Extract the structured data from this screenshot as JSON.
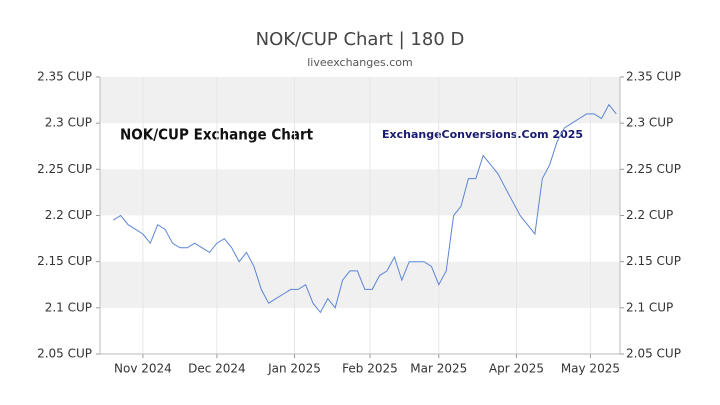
{
  "chart_data": {
    "type": "line",
    "title": "NOK/CUP Chart | 180 D",
    "subtitle": "liveexchanges.com",
    "annotations": [
      "NOK/CUP Exchange Chart",
      "ExchangeConversions.Com 2025"
    ],
    "series": [
      {
        "name": "NOK/CUP",
        "color": "#5b85d6",
        "values": [
          2.195,
          2.2,
          2.19,
          2.185,
          2.18,
          2.17,
          2.19,
          2.185,
          2.17,
          2.165,
          2.165,
          2.17,
          2.165,
          2.16,
          2.17,
          2.175,
          2.165,
          2.15,
          2.16,
          2.145,
          2.12,
          2.105,
          2.11,
          2.115,
          2.12,
          2.12,
          2.125,
          2.105,
          2.095,
          2.11,
          2.1,
          2.13,
          2.14,
          2.14,
          2.12,
          2.12,
          2.135,
          2.14,
          2.155,
          2.13,
          2.15,
          2.15,
          2.15,
          2.145,
          2.125,
          2.14,
          2.2,
          2.21,
          2.24,
          2.24,
          2.265,
          2.255,
          2.245,
          2.23,
          2.215,
          2.2,
          2.19,
          2.18,
          2.24,
          2.255,
          2.28,
          2.295,
          2.3,
          2.305,
          2.31,
          2.31,
          2.305,
          2.32,
          2.31
        ]
      }
    ],
    "xlim": [
      -1.8,
      68.5
    ],
    "xticks": [
      {
        "value": 4,
        "label": "Nov 2024"
      },
      {
        "value": 14,
        "label": "Dec 2024"
      },
      {
        "value": 24.5,
        "label": "Jan 2025"
      },
      {
        "value": 34.7,
        "label": "Feb 2025"
      },
      {
        "value": 44,
        "label": "Mar 2025"
      },
      {
        "value": 54.5,
        "label": "Apr 2025"
      },
      {
        "value": 64.5,
        "label": "May 2025"
      }
    ],
    "ylim": [
      2.05,
      2.35
    ],
    "yticks": [
      {
        "value": 2.05,
        "label": "2.05 CUP"
      },
      {
        "value": 2.1,
        "label": "2.1 CUP"
      },
      {
        "value": 2.15,
        "label": "2.15 CUP"
      },
      {
        "value": 2.2,
        "label": "2.2 CUP"
      },
      {
        "value": 2.25,
        "label": "2.25 CUP"
      },
      {
        "value": 2.3,
        "label": "2.3 CUP"
      },
      {
        "value": 2.35,
        "label": "2.35 CUP"
      }
    ],
    "grid": true
  }
}
